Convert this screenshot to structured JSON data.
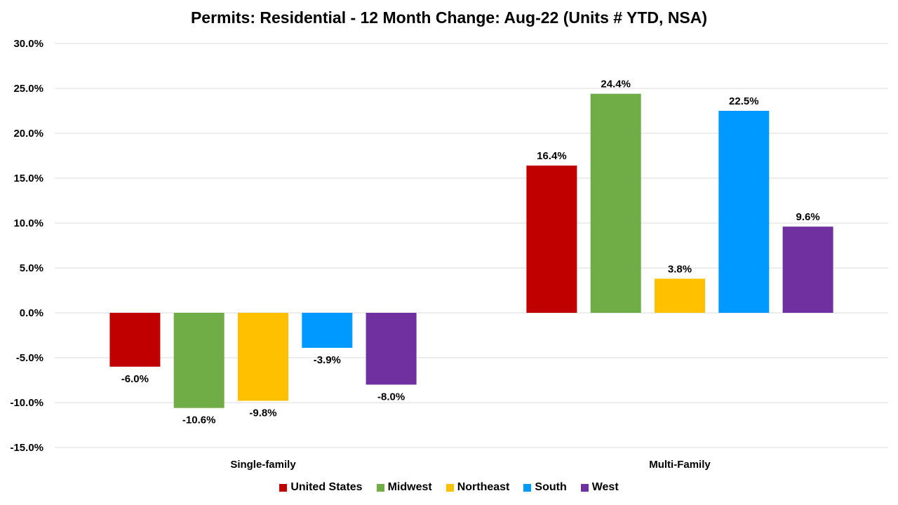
{
  "chart_data": {
    "type": "bar",
    "title": "Permits: Residential - 12 Month Change:  Aug-22 (Units # YTD, NSA)",
    "categories": [
      "Single-family",
      "Multi-Family"
    ],
    "series": [
      {
        "name": "United States",
        "color": "#C00000",
        "values": [
          -6.0,
          16.4
        ],
        "labels": [
          "-6.0%",
          "16.4%"
        ]
      },
      {
        "name": "Midwest",
        "color": "#70AD47",
        "values": [
          -10.6,
          24.4
        ],
        "labels": [
          "-10.6%",
          "24.4%"
        ]
      },
      {
        "name": "Northeast",
        "color": "#FFC000",
        "values": [
          -9.8,
          3.8
        ],
        "labels": [
          "-9.8%",
          "3.8%"
        ]
      },
      {
        "name": "South",
        "color": "#0099FF",
        "values": [
          -3.9,
          22.5
        ],
        "labels": [
          "-3.9%",
          "22.5%"
        ]
      },
      {
        "name": "West",
        "color": "#7030A0",
        "values": [
          -8.0,
          9.6
        ],
        "labels": [
          "-8.0%",
          "9.6%"
        ]
      }
    ],
    "ylim": [
      -15,
      30
    ],
    "yticks": [
      30,
      25,
      20,
      15,
      10,
      5,
      0,
      -5,
      -10,
      -15
    ],
    "ytick_labels": [
      "30.0%",
      "25.0%",
      "20.0%",
      "15.0%",
      "10.0%",
      "5.0%",
      "0.0%",
      "-5.0%",
      "-10.0%",
      "-15.0%"
    ],
    "grid": true,
    "legend_position": "bottom"
  }
}
